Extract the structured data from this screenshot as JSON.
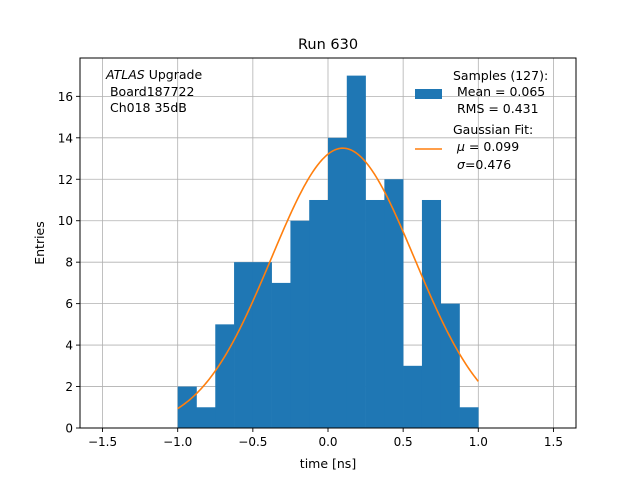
{
  "chart_data": {
    "type": "bar",
    "title": "Run 630",
    "xlabel": "time [ns]",
    "ylabel": "Entries",
    "xlim": [
      -1.65,
      1.65
    ],
    "ylim": [
      0,
      17.85
    ],
    "grid": true,
    "x_ticks": [
      -1.5,
      -1.0,
      -0.5,
      0.0,
      0.5,
      1.0,
      1.5
    ],
    "x_tick_labels": [
      "−1.5",
      "−1.0",
      "−0.5",
      "0.0",
      "0.5",
      "1.0",
      "1.5"
    ],
    "y_ticks": [
      0,
      2,
      4,
      6,
      8,
      10,
      12,
      14,
      16
    ],
    "y_tick_labels": [
      "0",
      "2",
      "4",
      "6",
      "8",
      "10",
      "12",
      "14",
      "16"
    ],
    "annotation": {
      "italic": "ATLAS",
      "rest": " Upgrade",
      "line2": " Board187722",
      "line3": " Ch018 35dB"
    },
    "legend": {
      "placement": "top-right",
      "histogram_lines": [
        "Samples (127):",
        " Mean = 0.065",
        " RMS = 0.431"
      ],
      "fit_title": "Gaussian Fit:",
      "fit_mu_symbol": "μ",
      "fit_mu_value": " = 0.099",
      "fit_sigma_symbol": "σ",
      "fit_sigma_value": "=0.476"
    },
    "series": [
      {
        "kind": "histogram",
        "color": "#1f77b4",
        "bin_edges": [
          -1.0,
          -0.875,
          -0.75,
          -0.625,
          -0.5,
          -0.375,
          -0.25,
          -0.125,
          0.0,
          0.125,
          0.25,
          0.375,
          0.5,
          0.625,
          0.75,
          0.875,
          1.0
        ],
        "values": [
          2,
          1,
          5,
          8,
          8,
          7,
          10,
          11,
          14,
          17,
          11,
          12,
          3,
          11,
          6,
          1
        ]
      },
      {
        "kind": "line",
        "color": "#ff7f0e",
        "amplitude": 13.5,
        "mu": 0.099,
        "sigma": 0.476,
        "x_range": [
          -1.0,
          1.0
        ]
      }
    ]
  }
}
